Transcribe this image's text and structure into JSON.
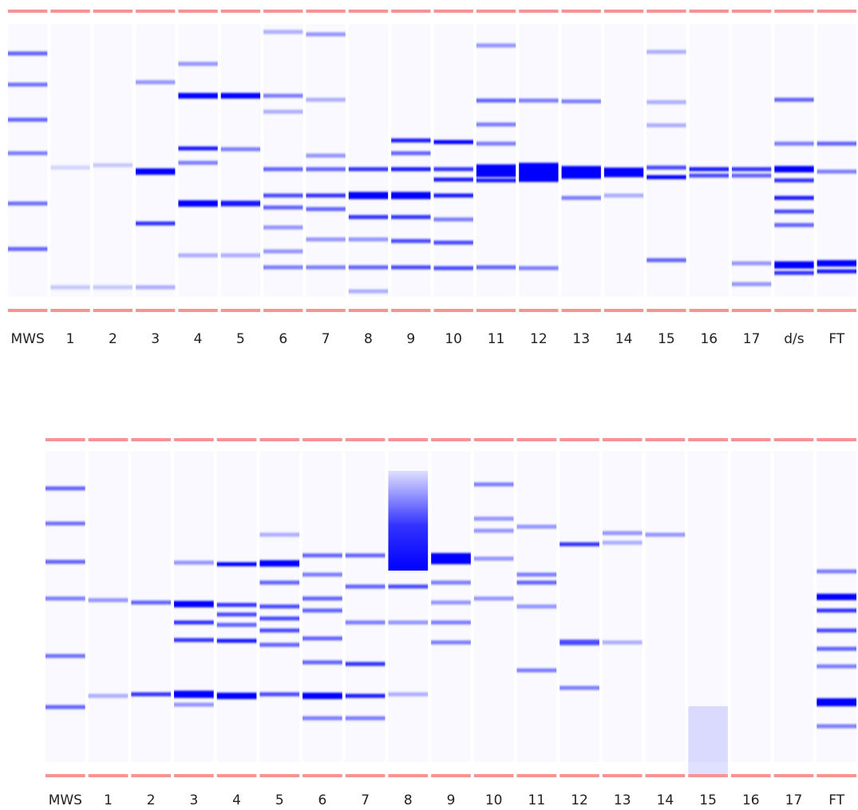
{
  "gels": [
    {
      "lanes": [
        "MWS",
        "1",
        "2",
        "3",
        "4",
        "5",
        "6",
        "7",
        "8",
        "9",
        "10",
        "11",
        "12",
        "13",
        "14",
        "15",
        "16",
        "17",
        "d/s",
        "FT"
      ]
    },
    {
      "lanes": [
        "MWS",
        "1",
        "2",
        "3",
        "4",
        "5",
        "6",
        "7",
        "8",
        "9",
        "10",
        "11",
        "12",
        "13",
        "14",
        "15",
        "16",
        "17",
        "FT"
      ]
    }
  ]
}
